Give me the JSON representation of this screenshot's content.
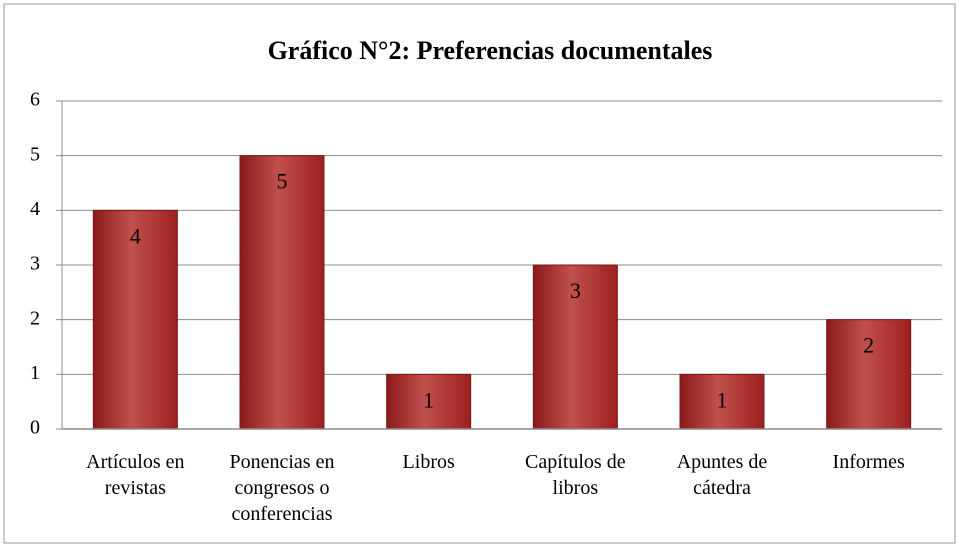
{
  "chart_data": {
    "type": "bar",
    "title": "Gráfico N°2: Preferencias documentales",
    "categories": [
      "Artículos en revistas",
      "Ponencias en congresos o conferencias",
      "Libros",
      "Capítulos de libros",
      "Apuntes de cátedra",
      "Informes"
    ],
    "values": [
      4,
      5,
      1,
      3,
      1,
      2
    ],
    "color": "#c0504d",
    "ylim": [
      0,
      6
    ],
    "yticks": [
      0,
      1,
      2,
      3,
      4,
      5,
      6
    ],
    "grid": true
  }
}
